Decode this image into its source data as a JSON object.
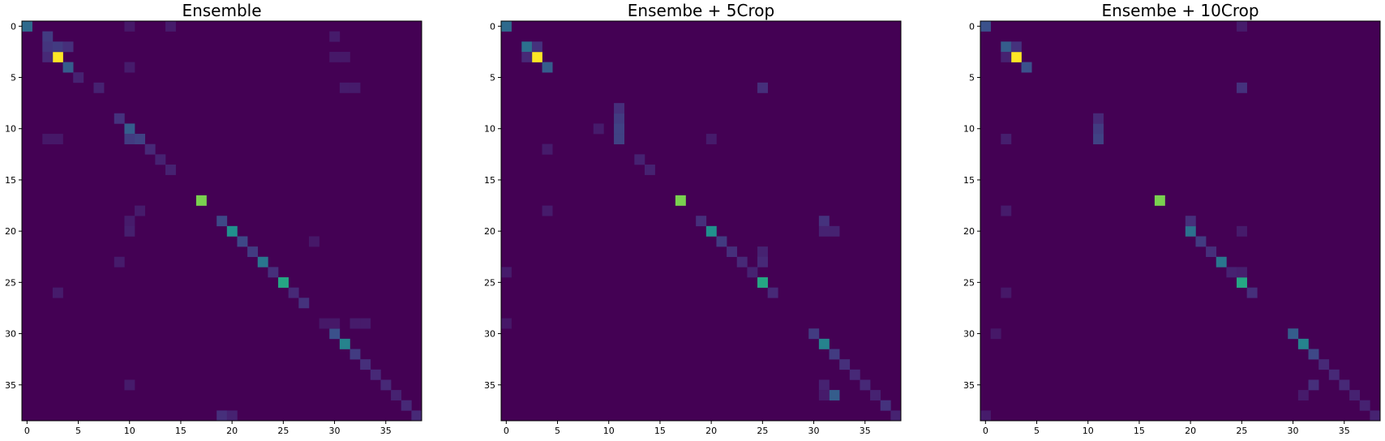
{
  "chart_data": [
    {
      "type": "heatmap",
      "title": "Ensemble",
      "size": 39,
      "colormap": "viridis",
      "background_color": "#440154",
      "xticks": [
        "0",
        "5",
        "10",
        "15",
        "20",
        "25",
        "30",
        "35"
      ],
      "yticks": [
        "0",
        "5",
        "10",
        "15",
        "20",
        "25",
        "30",
        "35"
      ],
      "cells": [
        [
          0,
          0,
          0.35
        ],
        [
          3,
          3,
          1.0
        ],
        [
          17,
          17,
          0.8
        ],
        [
          20,
          20,
          0.5
        ],
        [
          25,
          25,
          0.6
        ],
        [
          31,
          31,
          0.45
        ],
        [
          23,
          23,
          0.4
        ],
        [
          10,
          10,
          0.3
        ],
        [
          1,
          2,
          0.18
        ],
        [
          2,
          2,
          0.16
        ],
        [
          2,
          3,
          0.18
        ],
        [
          2,
          4,
          0.14
        ],
        [
          3,
          2,
          0.12
        ],
        [
          4,
          4,
          0.3
        ],
        [
          5,
          5,
          0.1
        ],
        [
          6,
          7,
          0.1
        ],
        [
          9,
          9,
          0.15
        ],
        [
          11,
          10,
          0.18
        ],
        [
          11,
          11,
          0.2
        ],
        [
          12,
          12,
          0.12
        ],
        [
          13,
          13,
          0.1
        ],
        [
          14,
          14,
          0.1
        ],
        [
          19,
          19,
          0.22
        ],
        [
          21,
          21,
          0.22
        ],
        [
          22,
          22,
          0.18
        ],
        [
          24,
          24,
          0.14
        ],
        [
          26,
          26,
          0.12
        ],
        [
          27,
          27,
          0.15
        ],
        [
          30,
          30,
          0.25
        ],
        [
          32,
          32,
          0.18
        ],
        [
          33,
          33,
          0.14
        ],
        [
          34,
          34,
          0.12
        ],
        [
          35,
          35,
          0.12
        ],
        [
          36,
          36,
          0.1
        ],
        [
          37,
          37,
          0.12
        ],
        [
          38,
          38,
          0.12
        ],
        [
          38,
          19,
          0.14
        ],
        [
          38,
          20,
          0.1
        ],
        [
          4,
          10,
          0.08
        ],
        [
          1,
          30,
          0.08
        ],
        [
          6,
          31,
          0.08
        ],
        [
          6,
          32,
          0.08
        ],
        [
          3,
          30,
          0.07
        ],
        [
          3,
          31,
          0.07
        ],
        [
          11,
          2,
          0.07
        ],
        [
          11,
          3,
          0.07
        ],
        [
          18,
          11,
          0.08
        ],
        [
          19,
          10,
          0.08
        ],
        [
          20,
          10,
          0.09
        ],
        [
          21,
          28,
          0.07
        ],
        [
          23,
          9,
          0.08
        ],
        [
          26,
          3,
          0.08
        ],
        [
          29,
          29,
          0.07
        ],
        [
          29,
          30,
          0.07
        ],
        [
          29,
          32,
          0.08
        ],
        [
          29,
          33,
          0.08
        ],
        [
          35,
          10,
          0.08
        ],
        [
          0,
          14,
          0.08
        ],
        [
          0,
          10,
          0.07
        ]
      ]
    },
    {
      "type": "heatmap",
      "title": "Ensembe + 5Crop",
      "size": 39,
      "colormap": "viridis",
      "background_color": "#440154",
      "xticks": [
        "0",
        "5",
        "10",
        "15",
        "20",
        "25",
        "30",
        "35"
      ],
      "yticks": [
        "0",
        "5",
        "10",
        "15",
        "20",
        "25",
        "30",
        "35"
      ],
      "cells": [
        [
          0,
          0,
          0.35
        ],
        [
          3,
          3,
          1.0
        ],
        [
          17,
          17,
          0.8
        ],
        [
          20,
          20,
          0.5
        ],
        [
          25,
          25,
          0.6
        ],
        [
          31,
          31,
          0.45
        ],
        [
          36,
          32,
          0.3
        ],
        [
          2,
          2,
          0.38
        ],
        [
          4,
          4,
          0.3
        ],
        [
          2,
          3,
          0.15
        ],
        [
          3,
          2,
          0.12
        ],
        [
          9,
          11,
          0.18
        ],
        [
          10,
          11,
          0.2
        ],
        [
          11,
          11,
          0.2
        ],
        [
          12,
          4,
          0.1
        ],
        [
          13,
          13,
          0.1
        ],
        [
          14,
          14,
          0.1
        ],
        [
          19,
          19,
          0.14
        ],
        [
          21,
          21,
          0.18
        ],
        [
          22,
          22,
          0.14
        ],
        [
          23,
          23,
          0.12
        ],
        [
          24,
          24,
          0.1
        ],
        [
          26,
          26,
          0.12
        ],
        [
          30,
          30,
          0.18
        ],
        [
          32,
          32,
          0.18
        ],
        [
          33,
          33,
          0.14
        ],
        [
          34,
          34,
          0.12
        ],
        [
          35,
          35,
          0.12
        ],
        [
          36,
          36,
          0.1
        ],
        [
          37,
          37,
          0.15
        ],
        [
          38,
          38,
          0.1
        ],
        [
          6,
          25,
          0.14
        ],
        [
          8,
          11,
          0.14
        ],
        [
          11,
          20,
          0.08
        ],
        [
          12,
          4,
          0.08
        ],
        [
          19,
          31,
          0.15
        ],
        [
          20,
          31,
          0.1
        ],
        [
          20,
          32,
          0.1
        ],
        [
          22,
          25,
          0.1
        ],
        [
          23,
          25,
          0.12
        ],
        [
          35,
          31,
          0.1
        ],
        [
          36,
          31,
          0.08
        ],
        [
          24,
          0,
          0.08
        ],
        [
          18,
          4,
          0.08
        ],
        [
          29,
          0,
          0.07
        ],
        [
          10,
          9,
          0.08
        ]
      ]
    },
    {
      "type": "heatmap",
      "title": "Ensembe + 10Crop",
      "size": 39,
      "colormap": "viridis",
      "background_color": "#440154",
      "xticks": [
        "0",
        "5",
        "10",
        "15",
        "20",
        "25",
        "30",
        "35"
      ],
      "yticks": [
        "0",
        "5",
        "10",
        "15",
        "20",
        "25",
        "30",
        "35"
      ],
      "cells": [
        [
          0,
          0,
          0.25
        ],
        [
          3,
          3,
          1.0
        ],
        [
          17,
          17,
          0.8
        ],
        [
          20,
          20,
          0.38
        ],
        [
          25,
          25,
          0.6
        ],
        [
          31,
          31,
          0.45
        ],
        [
          2,
          2,
          0.3
        ],
        [
          4,
          4,
          0.25
        ],
        [
          2,
          3,
          0.15
        ],
        [
          3,
          2,
          0.1
        ],
        [
          10,
          11,
          0.18
        ],
        [
          11,
          11,
          0.2
        ],
        [
          9,
          11,
          0.12
        ],
        [
          19,
          20,
          0.14
        ],
        [
          21,
          21,
          0.18
        ],
        [
          22,
          22,
          0.14
        ],
        [
          23,
          23,
          0.4
        ],
        [
          24,
          24,
          0.1
        ],
        [
          26,
          26,
          0.14
        ],
        [
          30,
          30,
          0.3
        ],
        [
          32,
          32,
          0.22
        ],
        [
          33,
          33,
          0.12
        ],
        [
          34,
          34,
          0.12
        ],
        [
          35,
          35,
          0.12
        ],
        [
          36,
          36,
          0.1
        ],
        [
          37,
          37,
          0.1
        ],
        [
          38,
          38,
          0.1
        ],
        [
          6,
          25,
          0.15
        ],
        [
          35,
          32,
          0.14
        ],
        [
          36,
          31,
          0.08
        ],
        [
          38,
          0,
          0.08
        ],
        [
          0,
          25,
          0.08
        ],
        [
          11,
          2,
          0.09
        ],
        [
          24,
          25,
          0.09
        ],
        [
          20,
          25,
          0.08
        ],
        [
          18,
          2,
          0.08
        ],
        [
          26,
          2,
          0.07
        ],
        [
          30,
          1,
          0.07
        ]
      ]
    }
  ]
}
